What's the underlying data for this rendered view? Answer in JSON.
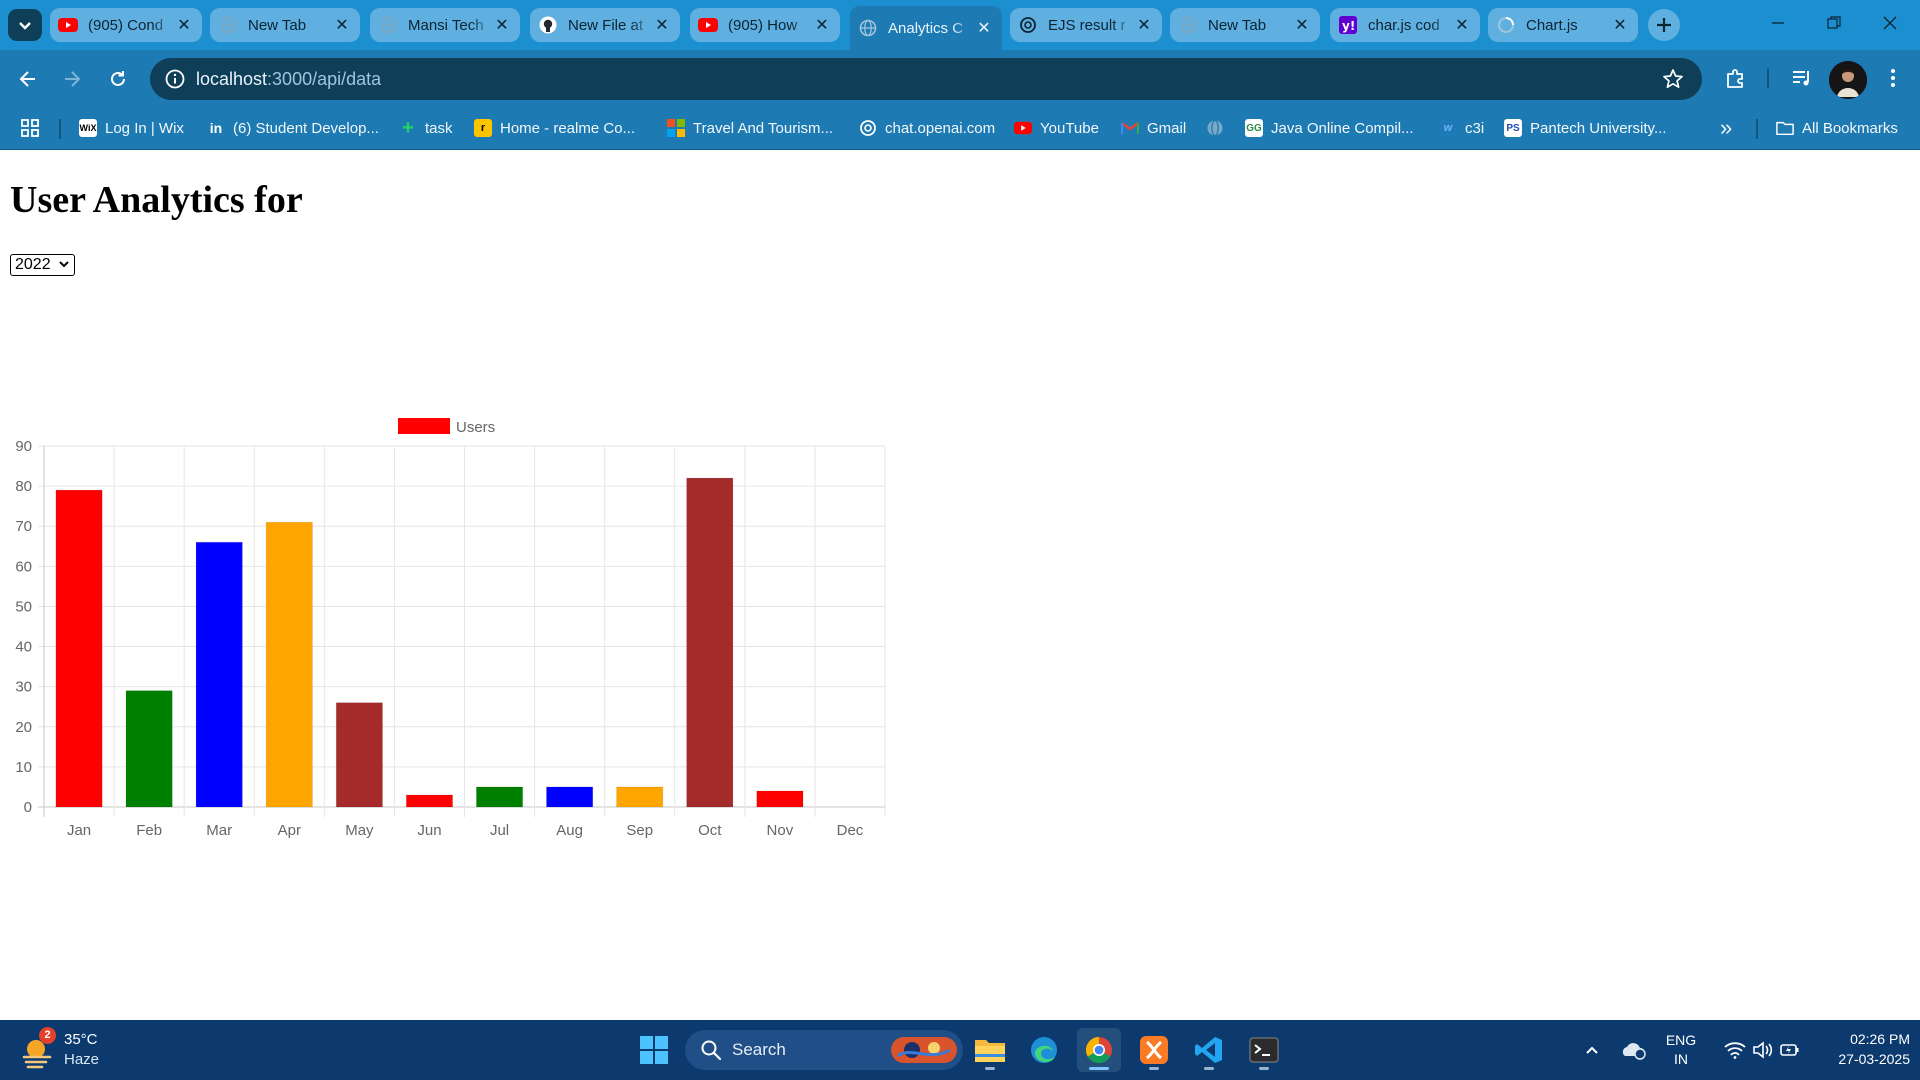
{
  "browser": {
    "tabs": [
      {
        "title": "(905) Cond",
        "favicon": "youtube-icon"
      },
      {
        "title": "New Tab",
        "favicon": "globe-icon"
      },
      {
        "title": "Mansi Tech",
        "favicon": "globe-icon"
      },
      {
        "title": "New File at",
        "favicon": "github-icon"
      },
      {
        "title": "(905) How",
        "favicon": "youtube-icon"
      },
      {
        "title": "Analytics C",
        "favicon": "globe-icon",
        "active": true
      },
      {
        "title": "EJS result r",
        "favicon": "openai-icon"
      },
      {
        "title": "New Tab",
        "favicon": "globe-icon"
      },
      {
        "title": "char.js cod",
        "favicon": "yahoo-icon"
      },
      {
        "title": "Chart.js",
        "favicon": "loading-icon"
      }
    ],
    "url_host": "localhost",
    "url_path": ":3000/api/data",
    "bookmarks": [
      {
        "label": "Log In | Wix",
        "icon": "wix-icon"
      },
      {
        "label": "(6) Student Develop...",
        "icon": "linkedin-icon"
      },
      {
        "label": "task",
        "icon": "task-icon"
      },
      {
        "label": "Home - realme Co...",
        "icon": "realme-icon"
      },
      {
        "label": "Travel And Tourism...",
        "icon": "microsoft-icon"
      },
      {
        "label": "chat.openai.com",
        "icon": "openai-icon"
      },
      {
        "label": "YouTube",
        "icon": "youtube-icon"
      },
      {
        "label": "Gmail",
        "icon": "gmail-icon"
      },
      {
        "label": "",
        "icon": "globe-icon"
      },
      {
        "label": "Java Online Compil...",
        "icon": "gfg-icon"
      },
      {
        "label": "c3i",
        "icon": "c3i-icon"
      },
      {
        "label": "Pantech University...",
        "icon": "pantech-icon"
      }
    ],
    "overflow_label": "»",
    "all_bookmarks_label": "All Bookmarks"
  },
  "page": {
    "title": "User Analytics for",
    "year_selected": "2022"
  },
  "chart_data": {
    "type": "bar",
    "categories": [
      "Jan",
      "Feb",
      "Mar",
      "Apr",
      "May",
      "Jun",
      "Jul",
      "Aug",
      "Sep",
      "Oct",
      "Nov",
      "Dec"
    ],
    "series": [
      {
        "name": "Users",
        "values": [
          79,
          29,
          66,
          71,
          26,
          3,
          5,
          5,
          5,
          82,
          4,
          0
        ]
      }
    ],
    "bar_colors": [
      "#ff0000",
      "#008000",
      "#0000ff",
      "#ffa500",
      "#a52a2a",
      "#ff0000",
      "#008000",
      "#0000ff",
      "#ffa500",
      "#a52a2a",
      "#ff0000",
      "#008000"
    ],
    "legend_color": "#ff0000",
    "ylim": [
      0,
      90
    ],
    "yticks": [
      0,
      10,
      20,
      30,
      40,
      50,
      60,
      70,
      80,
      90
    ],
    "grid": true,
    "legend_position": "top",
    "title": "",
    "xlabel": "",
    "ylabel": ""
  },
  "taskbar": {
    "weather_temp": "35°C",
    "weather_desc": "Haze",
    "weather_badge": "2",
    "search_label": "Search",
    "lang_line1": "ENG",
    "lang_line2": "IN",
    "time": "02:26 PM",
    "date": "27-03-2025"
  }
}
